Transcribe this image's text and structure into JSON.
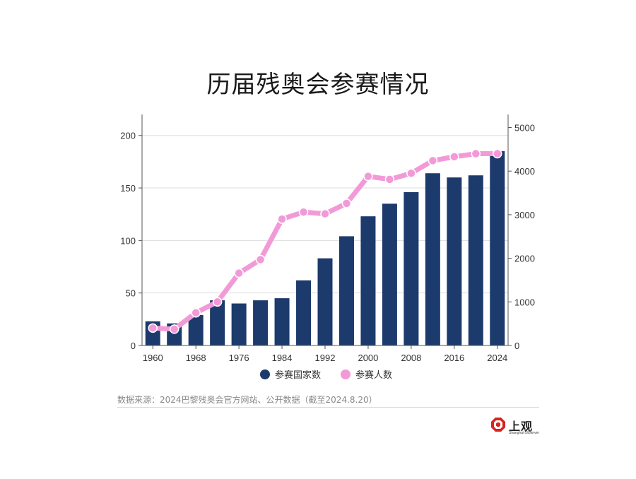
{
  "title": "历届残奥会参赛情况",
  "chart_data": {
    "type": "bar+line",
    "x": [
      1960,
      1964,
      1968,
      1972,
      1976,
      1980,
      1984,
      1988,
      1992,
      1996,
      2000,
      2004,
      2008,
      2012,
      2016,
      2020,
      2024
    ],
    "x_tick_labels": [
      "1960",
      "1968",
      "1976",
      "1984",
      "1992",
      "2000",
      "2008",
      "2016",
      "2024"
    ],
    "series": [
      {
        "name": "参赛国家数",
        "type": "bar",
        "axis": "left",
        "color": "#1c3a6b",
        "values": [
          23,
          21,
          29,
          43,
          40,
          43,
          45,
          62,
          83,
          104,
          123,
          135,
          146,
          164,
          160,
          162,
          185
        ]
      },
      {
        "name": "参赛人数",
        "type": "line",
        "axis": "right",
        "color": "#f29ad8",
        "values": [
          400,
          375,
          750,
          1000,
          1660,
          1970,
          2900,
          3060,
          3020,
          3260,
          3880,
          3810,
          3950,
          4240,
          4330,
          4400,
          4400
        ]
      }
    ],
    "y_left": {
      "min": 0,
      "max": 220,
      "ticks": [
        0,
        50,
        100,
        150,
        200
      ]
    },
    "y_right": {
      "min": 0,
      "max": 5300,
      "ticks": [
        0,
        1000,
        2000,
        3000,
        4000,
        5000
      ]
    },
    "grid": true,
    "legend_position": "bottom-center"
  },
  "source": "数据来源：2024巴黎残奥会官方网站、公开数据（截至2024.8.20）",
  "logo": {
    "cn": "上观",
    "en": "Shanghai Observer"
  }
}
